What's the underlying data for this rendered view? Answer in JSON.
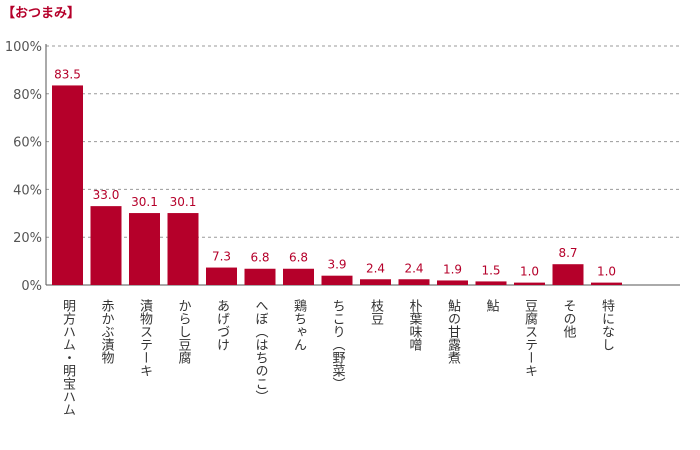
{
  "chart_data": {
    "type": "bar",
    "title": "【おつまみ】",
    "categories": [
      "明方ハム・明宝ハム",
      "赤かぶ漬物",
      "漬物ステーキ",
      "からし豆腐",
      "あげづけ",
      "へぼ（はちのこ）",
      "鶏ちゃん",
      "ちこり（野菜）",
      "枝豆",
      "朴葉味噌",
      "鮎の甘露煮",
      "鮎",
      "豆腐ステーキ",
      "その他",
      "特になし"
    ],
    "values": [
      83.5,
      33.0,
      30.1,
      30.1,
      7.3,
      6.8,
      6.8,
      3.9,
      2.4,
      2.4,
      1.9,
      1.5,
      1.0,
      8.7,
      1.0
    ],
    "value_labels": [
      "83.5",
      "33.0",
      "30.1",
      "30.1",
      "7.3",
      "6.8",
      "6.8",
      "3.9",
      "2.4",
      "2.4",
      "1.9",
      "1.5",
      "1.0",
      "8.7",
      "1.0"
    ],
    "ylim": [
      0,
      100
    ],
    "y_ticks": [
      "0%",
      "20%",
      "40%",
      "60%",
      "80%",
      "100%"
    ],
    "xlabel": "",
    "ylabel": "",
    "grid": true,
    "bar_color": "#b5002a",
    "label_color": "#b5002a"
  }
}
